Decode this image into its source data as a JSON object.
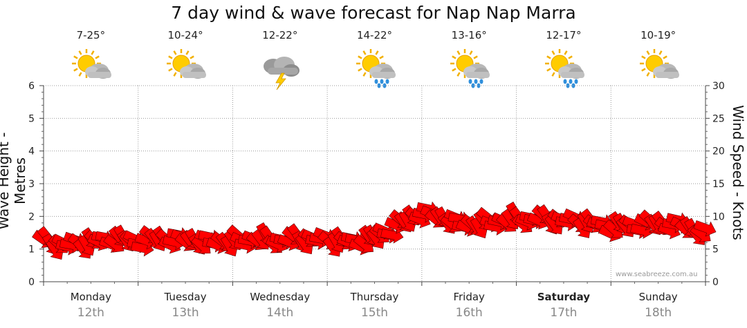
{
  "chart_data": {
    "type": "line",
    "title": "7 day wind & wave forecast for Nap Nap Marra",
    "ylabel_left": "Wave Height - Metres",
    "ylabel_right": "Wind Speed - Knots",
    "ylim_left": [
      0,
      6
    ],
    "ylim_right": [
      0,
      30
    ],
    "yticks_left": [
      "0",
      "1",
      "2",
      "3",
      "4",
      "5",
      "6"
    ],
    "yticks_right": [
      "0",
      "5",
      "10",
      "15",
      "20",
      "25",
      "30"
    ],
    "grid": true,
    "days": [
      {
        "name": "Monday",
        "date": "12th",
        "temp": "7-25°",
        "icon": "sun-cloud-icon",
        "bold": false
      },
      {
        "name": "Tuesday",
        "date": "13th",
        "temp": "10-24°",
        "icon": "sun-cloud-icon",
        "bold": false
      },
      {
        "name": "Wednesday",
        "date": "14th",
        "temp": "12-22°",
        "icon": "storm-icon",
        "bold": false
      },
      {
        "name": "Thursday",
        "date": "15th",
        "temp": "14-22°",
        "icon": "sun-rain-icon",
        "bold": false
      },
      {
        "name": "Friday",
        "date": "16th",
        "temp": "13-16°",
        "icon": "sun-rain-icon",
        "bold": false
      },
      {
        "name": "Saturday",
        "date": "17th",
        "temp": "12-17°",
        "icon": "sun-rain-icon",
        "bold": true
      },
      {
        "name": "Sunday",
        "date": "18th",
        "temp": "10-19°",
        "icon": "sun-cloud-icon",
        "bold": false
      }
    ],
    "series": [
      {
        "name": "",
        "unit": "knots",
        "x_days": [
          0,
          0.25,
          0.5,
          0.75,
          1,
          1.25,
          1.5,
          1.75,
          2,
          2.25,
          2.5,
          2.75,
          3,
          3.25,
          3.5,
          3.75,
          4,
          4.25,
          4.5,
          4.75,
          5,
          5.25,
          5.5,
          5.75,
          6,
          6.25,
          6.5,
          6.75,
          7
        ],
        "values": [
          6,
          5.5,
          6,
          6.5,
          6,
          6.5,
          6.3,
          6,
          6,
          6.5,
          6.2,
          6.5,
          6.3,
          6,
          6.5,
          8.5,
          10.5,
          9.5,
          8.5,
          9,
          9.5,
          9.5,
          9.3,
          9,
          8.3,
          8.5,
          8.8,
          8.5,
          7.3
        ]
      }
    ],
    "colors": {
      "arrow": "#ff0000",
      "arrow_outline": "#550000",
      "grid": "#999999"
    },
    "watermark": "www.seabreeze.com.au"
  }
}
